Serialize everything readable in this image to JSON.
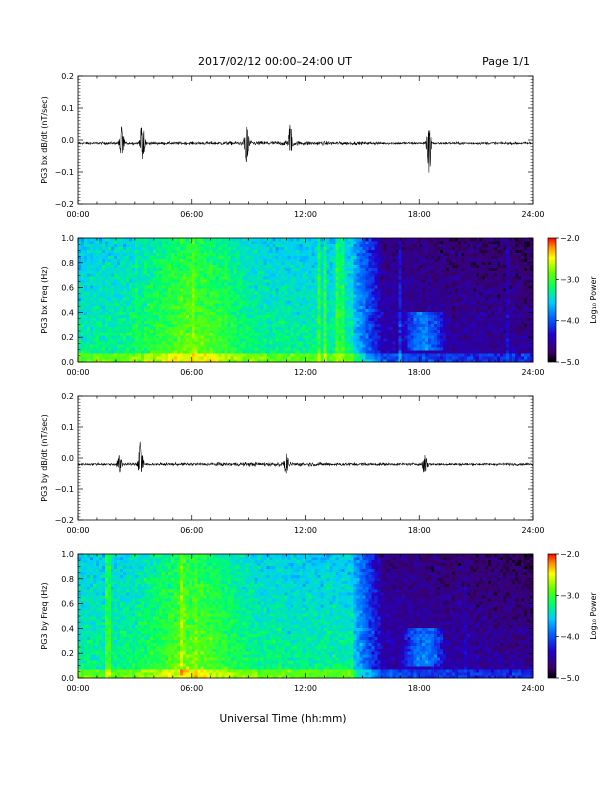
{
  "header": {
    "title": "2017/02/12  00:00–24:00 UT",
    "page": "Page 1/1"
  },
  "xaxis": {
    "label": "Universal Time (hh:mm)",
    "ticks": [
      "00:00",
      "06:00",
      "12:00",
      "18:00",
      "24:00"
    ],
    "range_hours": [
      0,
      24
    ]
  },
  "chart_data": [
    {
      "type": "line",
      "ylabel": "PG3 bx dB/dt (nT/sec)",
      "ylim": [
        -0.2,
        0.2
      ],
      "yticks": [
        "0.2",
        "0.1",
        "0.0",
        "−0.1",
        "−0.2"
      ],
      "baseline": -0.01,
      "activity": [
        {
          "t": 2.3,
          "peak": 0.05,
          "trough": -0.06
        },
        {
          "t": 3.4,
          "peak": 0.06,
          "trough": -0.06
        },
        {
          "t": 8.9,
          "peak": 0.04,
          "trough": -0.07
        },
        {
          "t": 11.2,
          "peak": 0.05,
          "trough": -0.05
        },
        {
          "t": 18.5,
          "peak": 0.04,
          "trough": -0.12
        }
      ],
      "series_color": "#000000"
    },
    {
      "type": "heatmap",
      "ylabel": "PG3 bx Freq (Hz)",
      "ylim": [
        0.0,
        1.0
      ],
      "yticks": [
        "1.0",
        "0.8",
        "0.6",
        "0.4",
        "0.2",
        "0.0"
      ],
      "colorbar": {
        "label": "Log₁₀ Power",
        "range": [
          -5.0,
          -2.0
        ],
        "ticks": [
          "−2.0",
          "−3.0",
          "−4.0",
          "−5.0"
        ]
      },
      "features": {
        "active_until_hour": 14.5,
        "quiet_from_hour": 16.0,
        "peak_hour": 6.0,
        "pc1_band": {
          "t_start": 17.0,
          "t_end": 19.5,
          "f_min": 0.1,
          "f_max": 0.4
        }
      }
    },
    {
      "type": "line",
      "ylabel": "PG3 by dB/dt (nT/sec)",
      "ylim": [
        -0.2,
        0.2
      ],
      "yticks": [
        "0.2",
        "0.1",
        "0.0",
        "−0.1",
        "−0.2"
      ],
      "baseline": -0.02,
      "activity": [
        {
          "t": 2.2,
          "peak": 0.01,
          "trough": -0.05
        },
        {
          "t": 3.3,
          "peak": 0.06,
          "trough": -0.06
        },
        {
          "t": 11.0,
          "peak": 0.01,
          "trough": -0.05
        },
        {
          "t": 18.3,
          "peak": 0.01,
          "trough": -0.07
        }
      ],
      "series_color": "#000000"
    },
    {
      "type": "heatmap",
      "ylabel": "PG3 by Freq (Hz)",
      "ylim": [
        0.0,
        1.0
      ],
      "yticks": [
        "1.0",
        "0.8",
        "0.6",
        "0.4",
        "0.2",
        "0.0"
      ],
      "colorbar": {
        "label": "Log₁₀ Power",
        "range": [
          -5.0,
          -2.0
        ],
        "ticks": [
          "−2.0",
          "−3.0",
          "−4.0",
          "−5.0"
        ]
      },
      "features": {
        "active_until_hour": 14.5,
        "quiet_from_hour": 16.0,
        "peak_hour": 6.0,
        "pc1_band": {
          "t_start": 17.0,
          "t_end": 19.5,
          "f_min": 0.1,
          "f_max": 0.4
        }
      }
    }
  ]
}
